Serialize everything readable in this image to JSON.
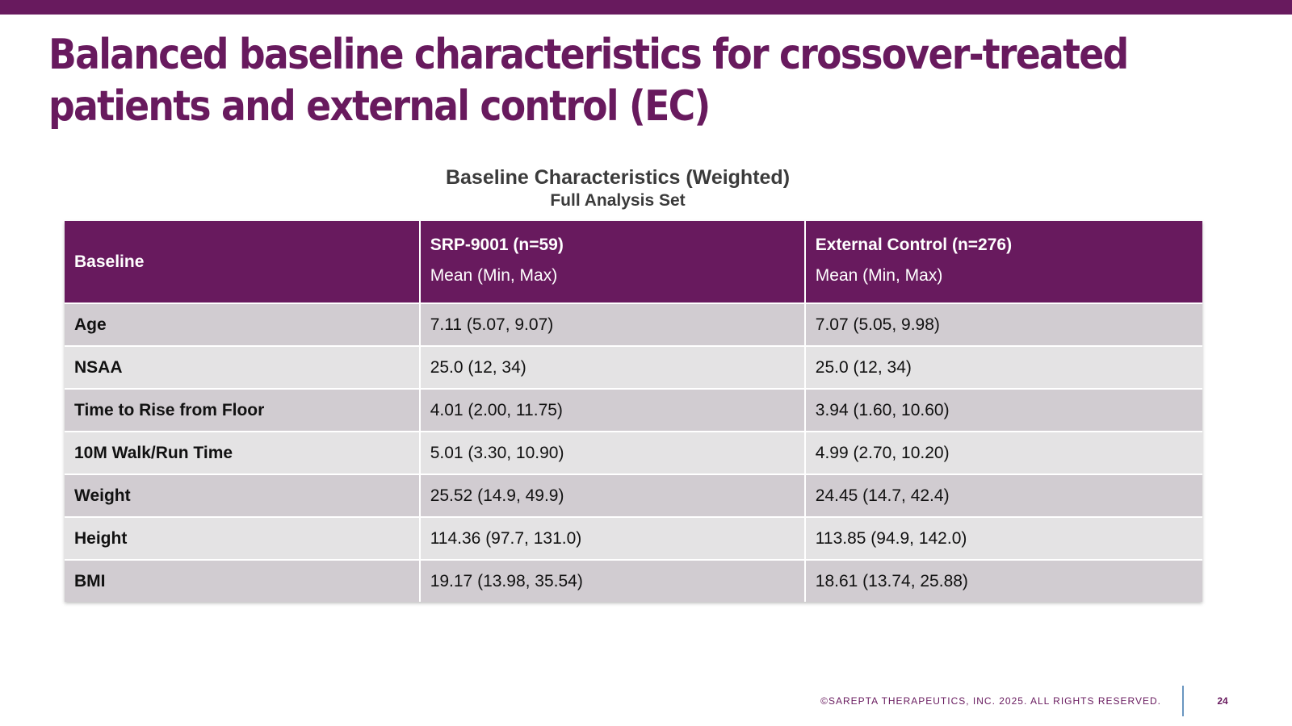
{
  "slide": {
    "title_line1": "Balanced baseline characteristics for crossover-treated",
    "title_line2": "patients and external control (EC)",
    "accent_color": "#681a5e"
  },
  "table": {
    "title": "Baseline Characteristics (Weighted)",
    "subtitle": "Full Analysis Set",
    "headers": [
      {
        "title": "Baseline",
        "sub": ""
      },
      {
        "title": "SRP-9001 (n=59)",
        "sub": "Mean (Min, Max)"
      },
      {
        "title": "External Control (n=276)",
        "sub": "Mean (Min, Max)"
      }
    ],
    "rows": [
      [
        "Age",
        "7.11 (5.07, 9.07)",
        "7.07 (5.05, 9.98)"
      ],
      [
        "NSAA",
        "25.0 (12, 34)",
        "25.0 (12, 34)"
      ],
      [
        "Time to Rise from Floor",
        "4.01 (2.00, 11.75)",
        "3.94 (1.60, 10.60)"
      ],
      [
        "10M Walk/Run Time",
        "5.01 (3.30, 10.90)",
        "4.99 (2.70, 10.20)"
      ],
      [
        "Weight",
        "25.52 (14.9, 49.9)",
        "24.45 (14.7, 42.4)"
      ],
      [
        "Height",
        "114.36 (97.7, 131.0)",
        "113.85 (94.9, 142.0)"
      ],
      [
        "BMI",
        "19.17 (13.98, 35.54)",
        "18.61 (13.74, 25.88)"
      ]
    ]
  },
  "footer": {
    "copyright": "©SAREPTA THERAPEUTICS, INC. 2025.  ALL RIGHTS RESERVED.",
    "page_number": "24"
  }
}
